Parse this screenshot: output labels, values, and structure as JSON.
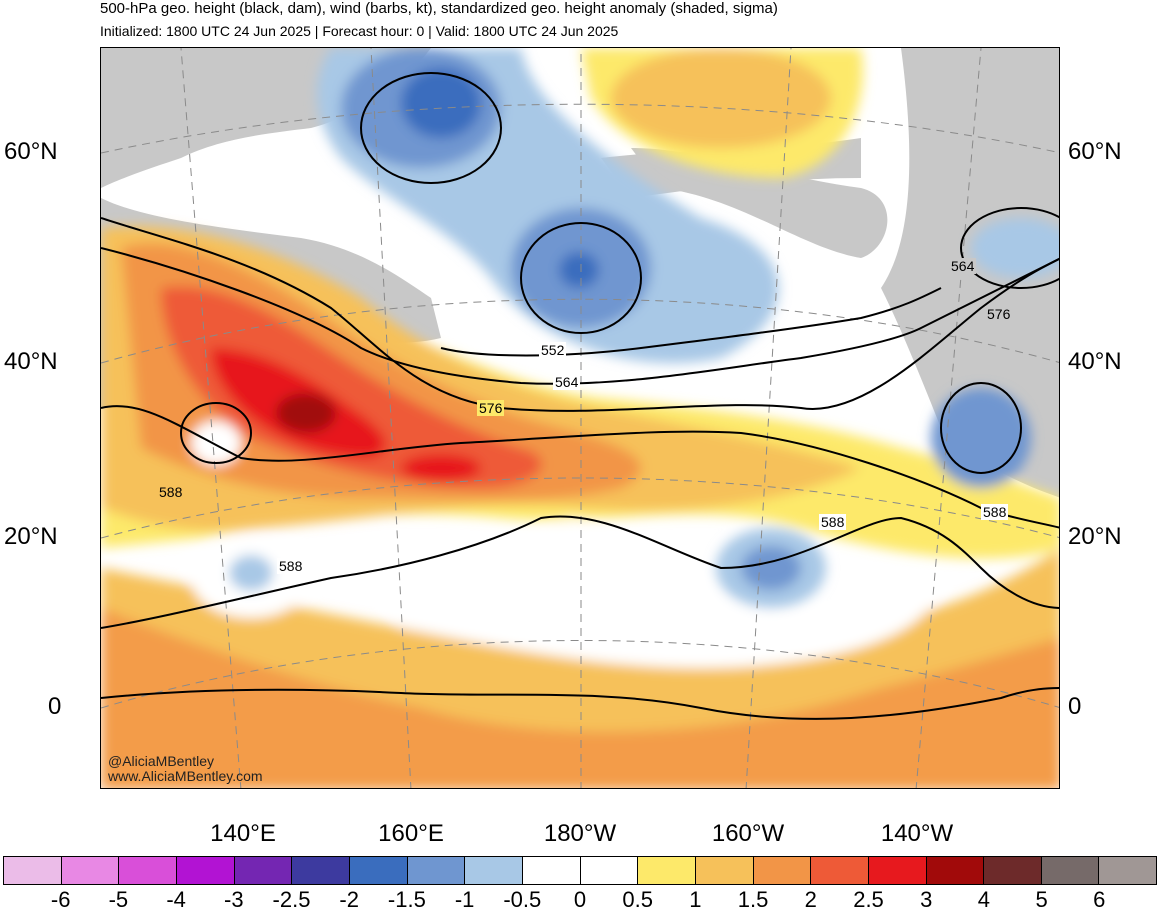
{
  "header": {
    "title": "500-hPa geo. height (black, dam), wind (barbs, kt), standardized geo. height anomaly (shaded, sigma)",
    "subtitle": "Initialized: 1800 UTC 24 Jun 2025 | Forecast hour: 0 | Valid: 1800 UTC 24 Jun 2025"
  },
  "map": {
    "lat_labels": [
      "60°N",
      "40°N",
      "20°N",
      "0"
    ],
    "lon_labels": [
      "140°E",
      "160°E",
      "180°W",
      "160°W",
      "140°W"
    ],
    "contour_labels": [
      "552",
      "564",
      "576",
      "588",
      "564",
      "576",
      "588",
      "588",
      "588"
    ],
    "credit_handle": "@AliciaMBentley",
    "credit_site": "www.AliciaMBentley.com"
  },
  "colorbar": {
    "labels": [
      "-6",
      "-5",
      "-4",
      "-3",
      "-2.5",
      "-2",
      "-1.5",
      "-1",
      "-0.5",
      "0",
      "0.5",
      "1",
      "1.5",
      "2",
      "2.5",
      "3",
      "4",
      "5",
      "6"
    ],
    "colors": [
      "#ebbce8",
      "#e888e4",
      "#d94fd9",
      "#b213d3",
      "#7426b2",
      "#3d3a9f",
      "#3a6dbe",
      "#6f96d0",
      "#a8c8e6",
      "#ffffff",
      "#ffffff",
      "#fde96a",
      "#f6c15a",
      "#f29547",
      "#ee5a37",
      "#e7191e",
      "#a10a0a",
      "#6d2a2a",
      "#766a69",
      "#a09795"
    ]
  },
  "colors": {
    "land": "#c8c8c8",
    "contour": "#000000",
    "grid": "#8a8a8a"
  }
}
